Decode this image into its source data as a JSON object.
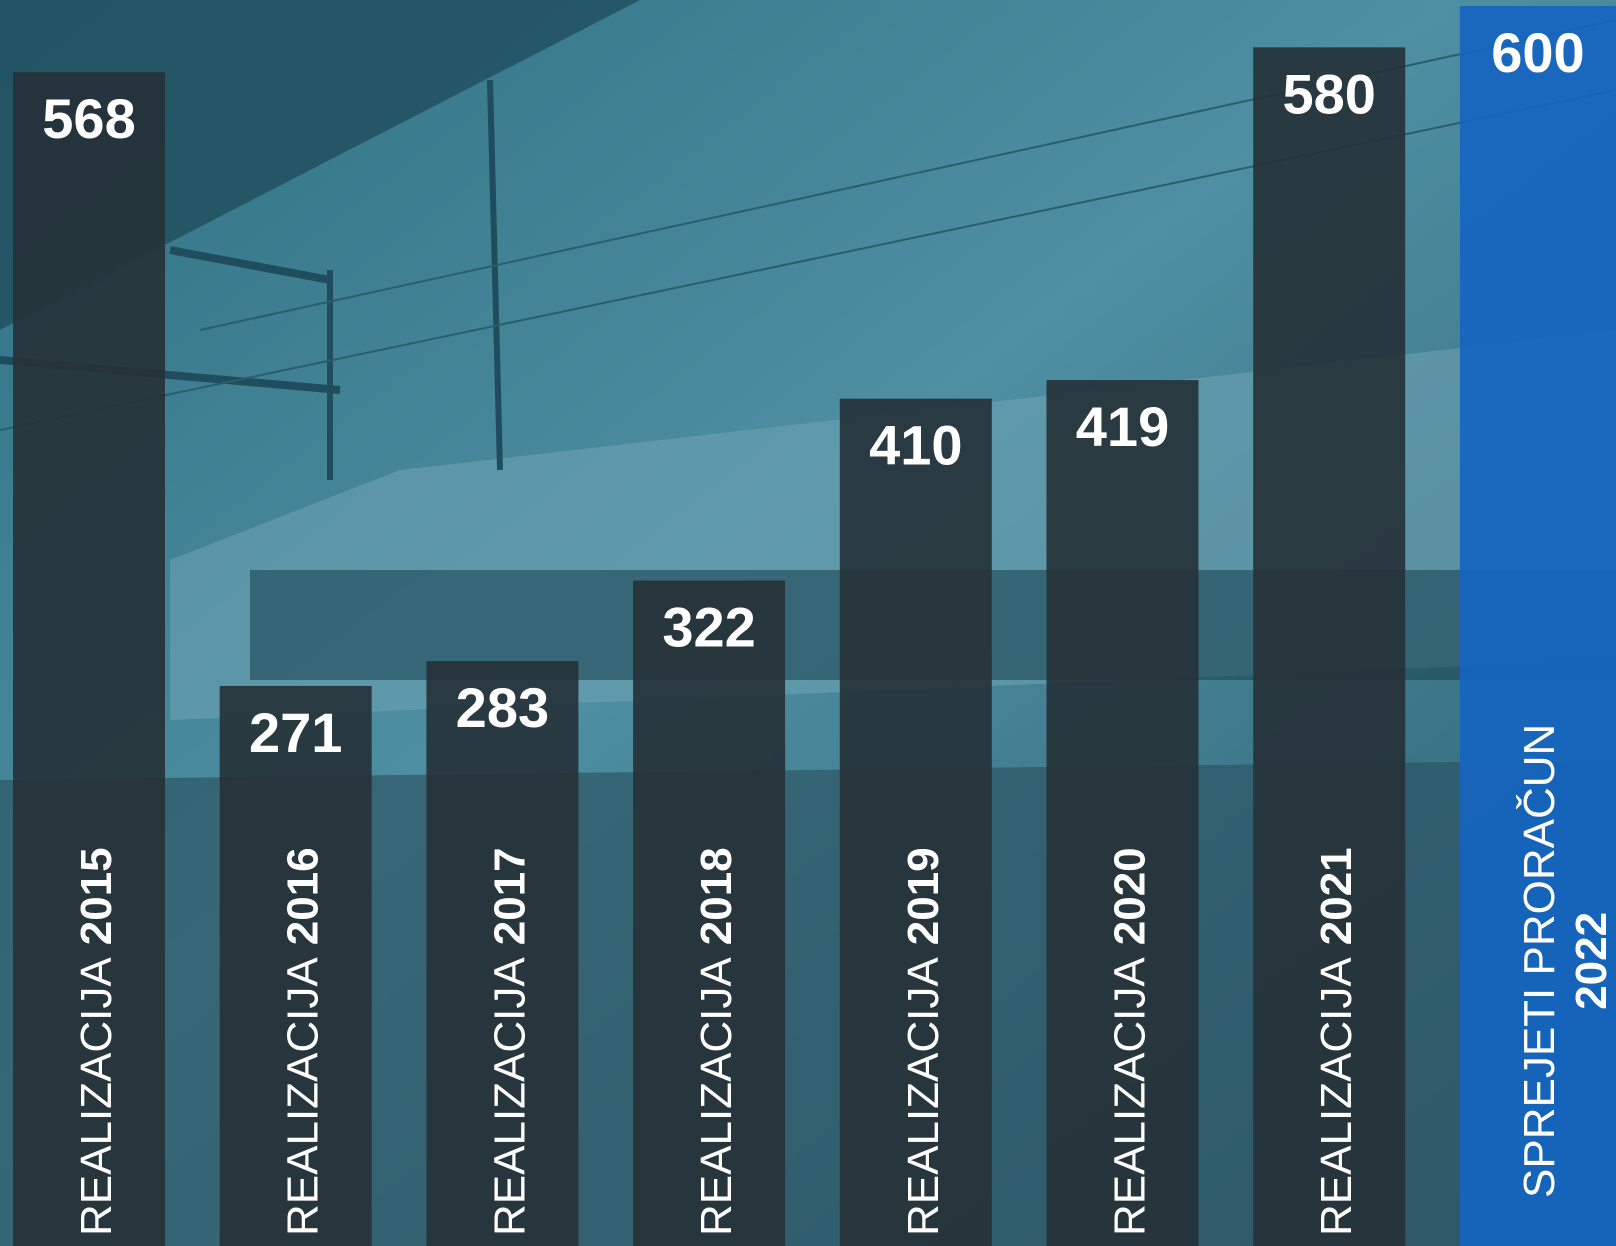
{
  "chart_data": {
    "type": "bar",
    "categories": [
      "REALIZACIJA 2015",
      "REALIZACIJA 2016",
      "REALIZACIJA 2017",
      "REALIZACIJA 2018",
      "REALIZACIJA 2019",
      "REALIZACIJA 2020",
      "REALIZACIJA 2021",
      "SPREJETI PRORAČUN 2022"
    ],
    "values": [
      568,
      271,
      283,
      322,
      410,
      419,
      580,
      600
    ],
    "colors": [
      "#263238",
      "#263238",
      "#263238",
      "#263238",
      "#263238",
      "#263238",
      "#263238",
      "#1565c0"
    ]
  }
}
